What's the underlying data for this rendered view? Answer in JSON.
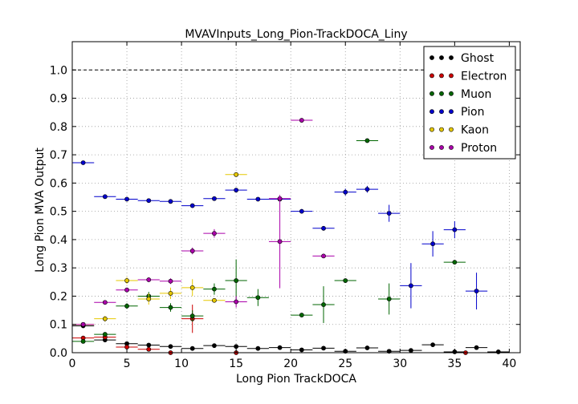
{
  "chart_data": {
    "type": "scatter",
    "title": "MVAVInputs_Long_Pion-TrackDOCA_Liny",
    "xlabel": "Long Pion TrackDOCA",
    "ylabel": "Long Pion MVA Output",
    "xlim": [
      0,
      41
    ],
    "ylim": [
      0,
      1.1
    ],
    "xticks": [
      0,
      5,
      10,
      15,
      20,
      25,
      30,
      35,
      40
    ],
    "yticks": [
      0.0,
      0.1,
      0.2,
      0.3,
      0.4,
      0.5,
      0.6,
      0.7,
      0.8,
      0.9,
      1.0
    ],
    "xtick_labels": [
      "0",
      "5",
      "10",
      "15",
      "20",
      "25",
      "30",
      "35",
      "40"
    ],
    "ytick_labels": [
      "0.0",
      "0.1",
      "0.2",
      "0.3",
      "0.4",
      "0.5",
      "0.6",
      "0.7",
      "0.8",
      "0.9",
      "1.0"
    ],
    "x_half_width": 1.0,
    "reference_line_y": 1.0,
    "grid": true,
    "legend_position": "top-right",
    "series": [
      {
        "name": "Ghost",
        "color": "#000000",
        "points": [
          [
            1,
            0.095,
            0.004
          ],
          [
            3,
            0.045,
            0.003
          ],
          [
            5,
            0.032,
            0.003
          ],
          [
            7,
            0.027,
            0.003
          ],
          [
            9,
            0.022,
            0.003
          ],
          [
            11,
            0.015,
            0.003
          ],
          [
            13,
            0.025,
            0.004
          ],
          [
            15,
            0.022,
            0.004
          ],
          [
            17,
            0.015,
            0.004
          ],
          [
            19,
            0.018,
            0.005
          ],
          [
            21,
            0.01,
            0.004
          ],
          [
            23,
            0.016,
            0.005
          ],
          [
            25,
            0.005,
            0.004
          ],
          [
            27,
            0.017,
            0.005
          ],
          [
            29,
            0.005,
            0.004
          ],
          [
            31,
            0.008,
            0.005
          ],
          [
            33,
            0.028,
            0.006
          ],
          [
            35,
            0.003,
            0.004
          ],
          [
            37,
            0.018,
            0.006
          ],
          [
            39,
            0.003,
            0.004
          ]
        ]
      },
      {
        "name": "Electron",
        "color": "#cc0000",
        "points": [
          [
            1,
            0.052,
            0.005
          ],
          [
            3,
            0.055,
            0.005
          ],
          [
            5,
            0.02,
            0.004
          ],
          [
            7,
            0.012,
            0.004
          ],
          [
            9,
            0.0,
            0.003
          ],
          [
            11,
            0.12,
            0.05
          ],
          [
            15,
            0.0,
            0.005
          ],
          [
            36,
            0.0,
            0.005
          ]
        ]
      },
      {
        "name": "Muon",
        "color": "#006600",
        "points": [
          [
            1,
            0.04,
            0.005
          ],
          [
            3,
            0.065,
            0.006
          ],
          [
            5,
            0.165,
            0.01
          ],
          [
            7,
            0.2,
            0.015
          ],
          [
            9,
            0.16,
            0.015
          ],
          [
            11,
            0.13,
            0.02
          ],
          [
            13,
            0.225,
            0.02
          ],
          [
            15,
            0.255,
            0.075
          ],
          [
            17,
            0.195,
            0.03
          ],
          [
            21,
            0.133,
            0.005
          ],
          [
            23,
            0.17,
            0.065
          ],
          [
            25,
            0.255,
            0.005
          ],
          [
            27,
            0.75,
            0.005
          ],
          [
            29,
            0.19,
            0.055
          ],
          [
            35,
            0.32,
            0.005
          ]
        ]
      },
      {
        "name": "Pion",
        "color": "#0000cc",
        "points": [
          [
            1,
            0.672,
            0.004
          ],
          [
            3,
            0.552,
            0.004
          ],
          [
            5,
            0.543,
            0.004
          ],
          [
            7,
            0.538,
            0.004
          ],
          [
            9,
            0.535,
            0.004
          ],
          [
            11,
            0.52,
            0.005
          ],
          [
            13,
            0.545,
            0.005
          ],
          [
            15,
            0.575,
            0.005
          ],
          [
            17,
            0.543,
            0.005
          ],
          [
            19,
            0.543,
            0.006
          ],
          [
            21,
            0.5,
            0.008
          ],
          [
            23,
            0.44,
            0.008
          ],
          [
            25,
            0.568,
            0.012
          ],
          [
            27,
            0.578,
            0.012
          ],
          [
            29,
            0.493,
            0.03
          ],
          [
            31,
            0.237,
            0.08
          ],
          [
            33,
            0.385,
            0.045
          ],
          [
            35,
            0.435,
            0.03
          ],
          [
            37,
            0.218,
            0.065
          ]
        ]
      },
      {
        "name": "Kaon",
        "color": "#e6c800",
        "points": [
          [
            1,
            0.1,
            0.005
          ],
          [
            3,
            0.12,
            0.01
          ],
          [
            5,
            0.255,
            0.012
          ],
          [
            7,
            0.19,
            0.02
          ],
          [
            9,
            0.21,
            0.02
          ],
          [
            11,
            0.23,
            0.03
          ],
          [
            13,
            0.185,
            0.008
          ],
          [
            15,
            0.63,
            0.005
          ]
        ]
      },
      {
        "name": "Proton",
        "color": "#aa00aa",
        "points": [
          [
            1,
            0.1,
            0.005
          ],
          [
            3,
            0.178,
            0.005
          ],
          [
            5,
            0.222,
            0.008
          ],
          [
            7,
            0.258,
            0.008
          ],
          [
            9,
            0.253,
            0.01
          ],
          [
            11,
            0.36,
            0.012
          ],
          [
            13,
            0.422,
            0.015
          ],
          [
            15,
            0.18,
            0.02
          ],
          [
            19,
            0.545,
            0.005
          ],
          [
            19,
            0.393,
            0.165
          ],
          [
            21,
            0.822,
            0.005
          ],
          [
            23,
            0.342,
            0.005
          ]
        ]
      }
    ]
  }
}
